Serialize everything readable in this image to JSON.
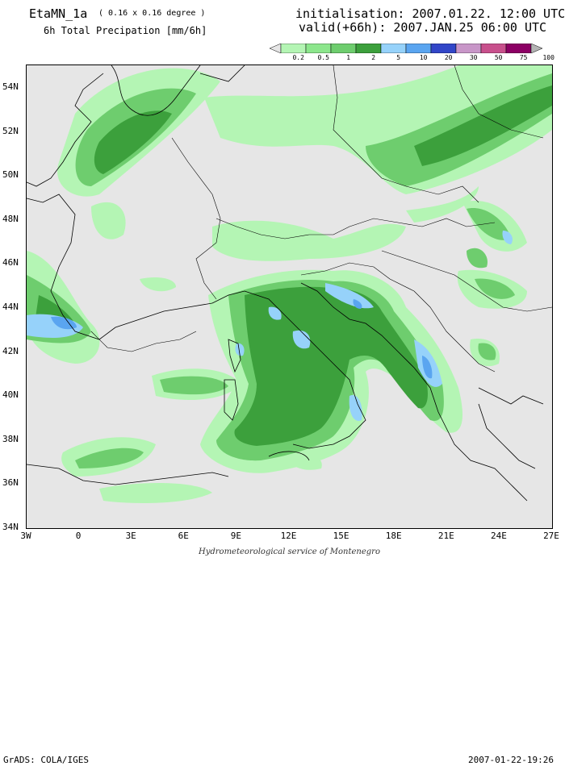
{
  "header": {
    "model_name": "EtaMN_1a",
    "resolution": "( 0.16 x 0.16 degree )",
    "product": "6h Total Precipation [mm/6h]",
    "init_label": "initialisation:",
    "init_value": "2007.01.22.  12:00 UTC",
    "valid_label": "valid(+66h):",
    "valid_value": "2007.JAN.25 06:00 UTC"
  },
  "legend": {
    "labels": [
      "0.2",
      "0.5",
      "1",
      "2",
      "5",
      "10",
      "20",
      "30",
      "50",
      "75",
      "100"
    ],
    "colors": [
      "#e6e6e6",
      "#b4f5b4",
      "#8ce68c",
      "#6ecd6e",
      "#3ca03c",
      "#96d2fa",
      "#5aa5f0",
      "#3246c8",
      "#c896c8",
      "#c8508c",
      "#8c0064",
      "#b4b4b4"
    ]
  },
  "axes": {
    "y_labels": [
      "54N",
      "52N",
      "50N",
      "48N",
      "46N",
      "44N",
      "42N",
      "40N",
      "38N",
      "36N",
      "34N"
    ],
    "x_labels": [
      "3W",
      "0",
      "3E",
      "6E",
      "9E",
      "12E",
      "15E",
      "18E",
      "21E",
      "24E",
      "27E"
    ]
  },
  "credit": "Hydrometeorological service of Montenegro",
  "footer": {
    "left": "GrADS: COLA/IGES",
    "right": "2007-01-22-19:26"
  }
}
